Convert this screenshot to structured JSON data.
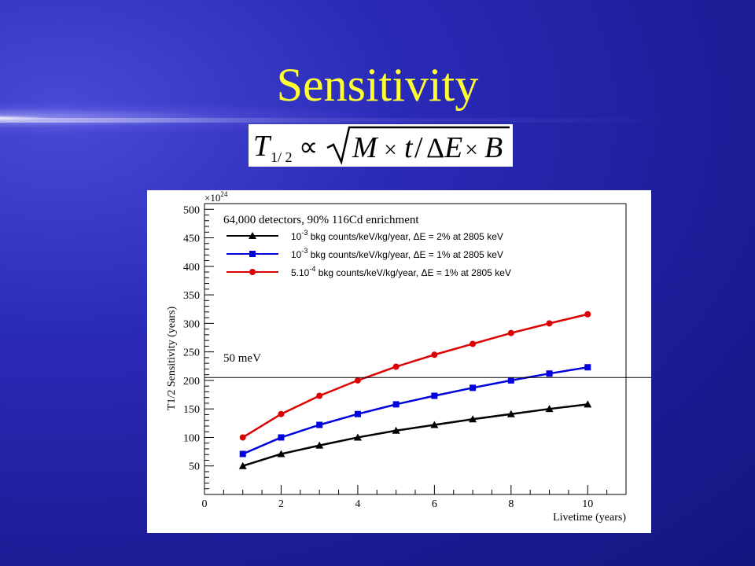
{
  "slide": {
    "title": "Sensitivity",
    "formula_text": "T1/2 ∝ √(M × t / ΔE × B)"
  },
  "annotation": {
    "line_label": "50 meV",
    "line_value": 205
  },
  "chart_data": {
    "type": "line",
    "title": "64,000 detectors, 90% 116Cd enrichment",
    "xlabel": "Livetime (years)",
    "ylabel": "T1/2 Sensitivity (years)",
    "y_multiplier": "×10^24",
    "xlim": [
      0,
      11
    ],
    "ylim": [
      0,
      510
    ],
    "x_ticks": [
      0,
      2,
      4,
      6,
      8,
      10
    ],
    "y_ticks": [
      50,
      100,
      150,
      200,
      250,
      300,
      350,
      400,
      450,
      500
    ],
    "grid": false,
    "legend_position": "top-left",
    "x": [
      1,
      2,
      3,
      4,
      5,
      6,
      7,
      8,
      9,
      10
    ],
    "series": [
      {
        "name": "10^-3 bkg counts/keV/kg/year, ΔE = 2% at 2805 keV",
        "legend_base": "10",
        "legend_exp": "-3",
        "legend_rest": " bkg counts/keV/kg/year, ΔE = 2% at 2805 keV",
        "color": "#000000",
        "marker": "triangle",
        "values": [
          50,
          71,
          86,
          100,
          112,
          122,
          132,
          141,
          150,
          158
        ]
      },
      {
        "name": "10^-3 bkg counts/keV/kg/year, ΔE = 1% at 2805 keV",
        "legend_base": "10",
        "legend_exp": "-3",
        "legend_rest": " bkg counts/keV/kg/year, ΔE = 1% at 2805 keV",
        "color": "#0000dd",
        "marker": "square",
        "values": [
          71,
          100,
          122,
          141,
          158,
          173,
          187,
          200,
          212,
          223
        ]
      },
      {
        "name": "5.10^-4 bkg counts/keV/kg/year, ΔE = 1% at 2805 keV",
        "legend_base": "5.10",
        "legend_exp": "-4",
        "legend_rest": " bkg counts/keV/kg/year, ΔE = 1% at 2805 keV",
        "color": "#dd0000",
        "marker": "circle",
        "values": [
          100,
          141,
          173,
          200,
          224,
          245,
          264,
          283,
          300,
          316
        ]
      }
    ]
  }
}
